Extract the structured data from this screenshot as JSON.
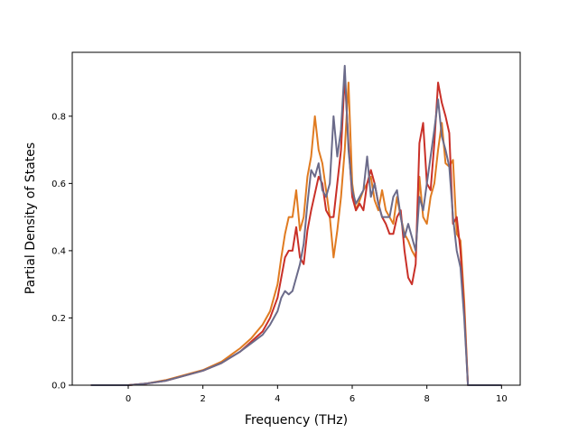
{
  "chart_data": {
    "type": "line",
    "title": "",
    "xlabel": "Frequency (THz)",
    "ylabel": "Partial Density of States",
    "xlim": [
      -1.5,
      10.5
    ],
    "ylim": [
      0.0,
      0.99
    ],
    "xticks": [
      "0",
      "2",
      "4",
      "6",
      "8",
      "10"
    ],
    "yticks": [
      "0.0",
      "0.2",
      "0.4",
      "0.6",
      "0.8"
    ],
    "grid": false,
    "legend": "none",
    "series": [
      {
        "color": "#e07b21",
        "x": [
          -1.0,
          0.0,
          0.5,
          1.0,
          1.5,
          2.0,
          2.5,
          3.0,
          3.3,
          3.6,
          3.8,
          4.0,
          4.1,
          4.2,
          4.3,
          4.4,
          4.5,
          4.6,
          4.7,
          4.8,
          4.9,
          5.0,
          5.1,
          5.2,
          5.3,
          5.4,
          5.5,
          5.6,
          5.7,
          5.8,
          5.9,
          6.0,
          6.1,
          6.2,
          6.3,
          6.4,
          6.5,
          6.6,
          6.7,
          6.8,
          6.9,
          7.0,
          7.1,
          7.2,
          7.3,
          7.4,
          7.5,
          7.6,
          7.7,
          7.8,
          7.9,
          8.0,
          8.1,
          8.2,
          8.3,
          8.4,
          8.5,
          8.6,
          8.7,
          8.8,
          8.9,
          9.0,
          9.1,
          9.2,
          10.0
        ],
        "y": [
          0.0,
          0.0,
          0.005,
          0.015,
          0.03,
          0.045,
          0.07,
          0.11,
          0.14,
          0.18,
          0.22,
          0.3,
          0.38,
          0.45,
          0.5,
          0.5,
          0.58,
          0.46,
          0.5,
          0.62,
          0.68,
          0.8,
          0.7,
          0.66,
          0.58,
          0.5,
          0.38,
          0.46,
          0.56,
          0.7,
          0.9,
          0.6,
          0.52,
          0.55,
          0.58,
          0.6,
          0.62,
          0.55,
          0.52,
          0.58,
          0.52,
          0.5,
          0.48,
          0.56,
          0.5,
          0.45,
          0.43,
          0.4,
          0.38,
          0.62,
          0.5,
          0.48,
          0.56,
          0.6,
          0.7,
          0.78,
          0.66,
          0.65,
          0.67,
          0.45,
          0.43,
          0.25,
          0.0,
          0.0,
          0.0
        ]
      },
      {
        "color": "#c93028",
        "x": [
          -1.0,
          0.0,
          0.5,
          1.0,
          1.5,
          2.0,
          2.5,
          3.0,
          3.3,
          3.6,
          3.8,
          4.0,
          4.1,
          4.2,
          4.3,
          4.4,
          4.5,
          4.6,
          4.7,
          4.8,
          4.9,
          5.0,
          5.1,
          5.2,
          5.3,
          5.4,
          5.5,
          5.6,
          5.7,
          5.8,
          5.9,
          6.0,
          6.1,
          6.2,
          6.3,
          6.4,
          6.5,
          6.6,
          6.7,
          6.8,
          6.9,
          7.0,
          7.1,
          7.2,
          7.3,
          7.4,
          7.5,
          7.6,
          7.7,
          7.8,
          7.9,
          8.0,
          8.1,
          8.2,
          8.3,
          8.4,
          8.5,
          8.6,
          8.7,
          8.8,
          8.9,
          9.0,
          9.1,
          9.2,
          10.0
        ],
        "y": [
          0.0,
          0.0,
          0.005,
          0.013,
          0.028,
          0.043,
          0.066,
          0.1,
          0.13,
          0.16,
          0.2,
          0.26,
          0.32,
          0.38,
          0.4,
          0.4,
          0.47,
          0.38,
          0.36,
          0.46,
          0.52,
          0.57,
          0.62,
          0.6,
          0.52,
          0.5,
          0.5,
          0.6,
          0.7,
          0.92,
          0.72,
          0.56,
          0.52,
          0.54,
          0.52,
          0.6,
          0.64,
          0.6,
          0.54,
          0.5,
          0.48,
          0.45,
          0.45,
          0.5,
          0.52,
          0.4,
          0.32,
          0.3,
          0.36,
          0.72,
          0.78,
          0.6,
          0.58,
          0.72,
          0.9,
          0.84,
          0.8,
          0.75,
          0.48,
          0.5,
          0.4,
          0.22,
          0.0,
          0.0,
          0.0
        ]
      },
      {
        "color": "#6b6b8a",
        "x": [
          -1.0,
          0.0,
          0.5,
          1.0,
          1.5,
          2.0,
          2.5,
          3.0,
          3.3,
          3.6,
          3.8,
          4.0,
          4.1,
          4.2,
          4.3,
          4.4,
          4.5,
          4.6,
          4.7,
          4.8,
          4.9,
          5.0,
          5.1,
          5.2,
          5.3,
          5.4,
          5.5,
          5.6,
          5.7,
          5.8,
          5.9,
          6.0,
          6.1,
          6.2,
          6.3,
          6.4,
          6.5,
          6.6,
          6.7,
          6.8,
          6.9,
          7.0,
          7.1,
          7.2,
          7.3,
          7.4,
          7.5,
          7.6,
          7.7,
          7.8,
          7.9,
          8.0,
          8.1,
          8.2,
          8.3,
          8.4,
          8.5,
          8.6,
          8.7,
          8.8,
          8.9,
          9.0,
          9.1,
          9.2,
          10.0
        ],
        "y": [
          0.0,
          0.0,
          0.005,
          0.013,
          0.028,
          0.043,
          0.066,
          0.1,
          0.125,
          0.15,
          0.18,
          0.22,
          0.26,
          0.28,
          0.27,
          0.28,
          0.32,
          0.36,
          0.42,
          0.54,
          0.64,
          0.62,
          0.66,
          0.58,
          0.56,
          0.6,
          0.8,
          0.68,
          0.76,
          0.95,
          0.7,
          0.58,
          0.54,
          0.56,
          0.58,
          0.68,
          0.56,
          0.6,
          0.54,
          0.5,
          0.5,
          0.5,
          0.56,
          0.58,
          0.5,
          0.44,
          0.48,
          0.44,
          0.4,
          0.56,
          0.52,
          0.6,
          0.68,
          0.76,
          0.85,
          0.74,
          0.7,
          0.65,
          0.5,
          0.4,
          0.35,
          0.2,
          0.0,
          0.0,
          0.0
        ]
      }
    ]
  }
}
